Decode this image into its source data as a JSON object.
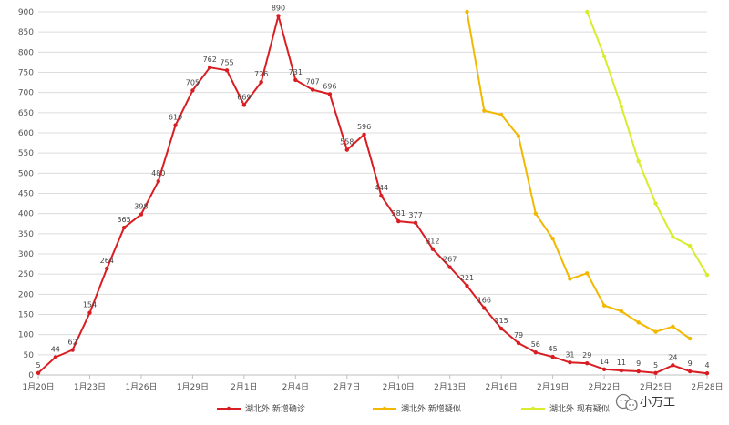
{
  "chart_data": {
    "type": "line",
    "title": "",
    "xlabel": "",
    "ylabel": "",
    "ylim": [
      0,
      900
    ],
    "y_ticks": [
      0,
      50,
      100,
      150,
      200,
      250,
      300,
      350,
      400,
      450,
      500,
      550,
      600,
      650,
      700,
      750,
      800,
      850,
      900
    ],
    "x_ticks": [
      {
        "day": 0,
        "label": "1月20日"
      },
      {
        "day": 3,
        "label": "1月23日"
      },
      {
        "day": 6,
        "label": "1月26日"
      },
      {
        "day": 9,
        "label": "1月29日"
      },
      {
        "day": 12,
        "label": "2月1日"
      },
      {
        "day": 15,
        "label": "2月4日"
      },
      {
        "day": 18,
        "label": "2月7日"
      },
      {
        "day": 21,
        "label": "2月10日"
      },
      {
        "day": 24,
        "label": "2月13日"
      },
      {
        "day": 27,
        "label": "2月16日"
      },
      {
        "day": 30,
        "label": "2月19日"
      },
      {
        "day": 33,
        "label": "2月22日"
      },
      {
        "day": 36,
        "label": "2月25日"
      },
      {
        "day": 39,
        "label": "2月28日"
      }
    ],
    "x_categories": [
      "1月20日",
      "1月21日",
      "1月22日",
      "1月23日",
      "1月24日",
      "1月25日",
      "1月26日",
      "1月27日",
      "1月28日",
      "1月29日",
      "1月30日",
      "1月31日",
      "2月1日",
      "2月2日",
      "2月3日",
      "2月4日",
      "2月5日",
      "2月6日",
      "2月7日",
      "2月8日",
      "2月9日",
      "2月10日",
      "2月11日",
      "2月12日",
      "2月13日",
      "2月14日",
      "2月15日",
      "2月16日",
      "2月17日",
      "2月18日",
      "2月19日",
      "2月20日",
      "2月21日",
      "2月22日",
      "2月23日",
      "2月24日",
      "2月25日",
      "2月26日",
      "2月27日",
      "2月28日"
    ],
    "grid": true,
    "legend_position": "bottom",
    "series": [
      {
        "name": "湖北外 新增确诊",
        "color": "#d81e23",
        "start": 0,
        "labeled": true,
        "values": [
          5,
          44,
          62,
          154,
          264,
          365,
          398,
          480,
          619,
          705,
          762,
          755,
          669,
          726,
          890,
          731,
          707,
          696,
          558,
          596,
          444,
          381,
          377,
          312,
          267,
          221,
          166,
          115,
          79,
          56,
          45,
          31,
          29,
          14,
          11,
          9,
          5,
          24,
          9,
          4
        ]
      },
      {
        "name": "湖北外 新增疑似",
        "color": "#f2b800",
        "start": 25,
        "labeled": false,
        "values": [
          900,
          655,
          645,
          592,
          400,
          338,
          238,
          252,
          172,
          158,
          130,
          107,
          120,
          90
        ]
      },
      {
        "name": "湖北外 现有疑似",
        "color": "#d8ec2b",
        "start": 32,
        "labeled": false,
        "values": [
          900,
          790,
          665,
          530,
          425,
          342,
          320,
          248
        ]
      }
    ]
  },
  "watermark": {
    "text": "小万工",
    "icon": "wechat-icon"
  }
}
